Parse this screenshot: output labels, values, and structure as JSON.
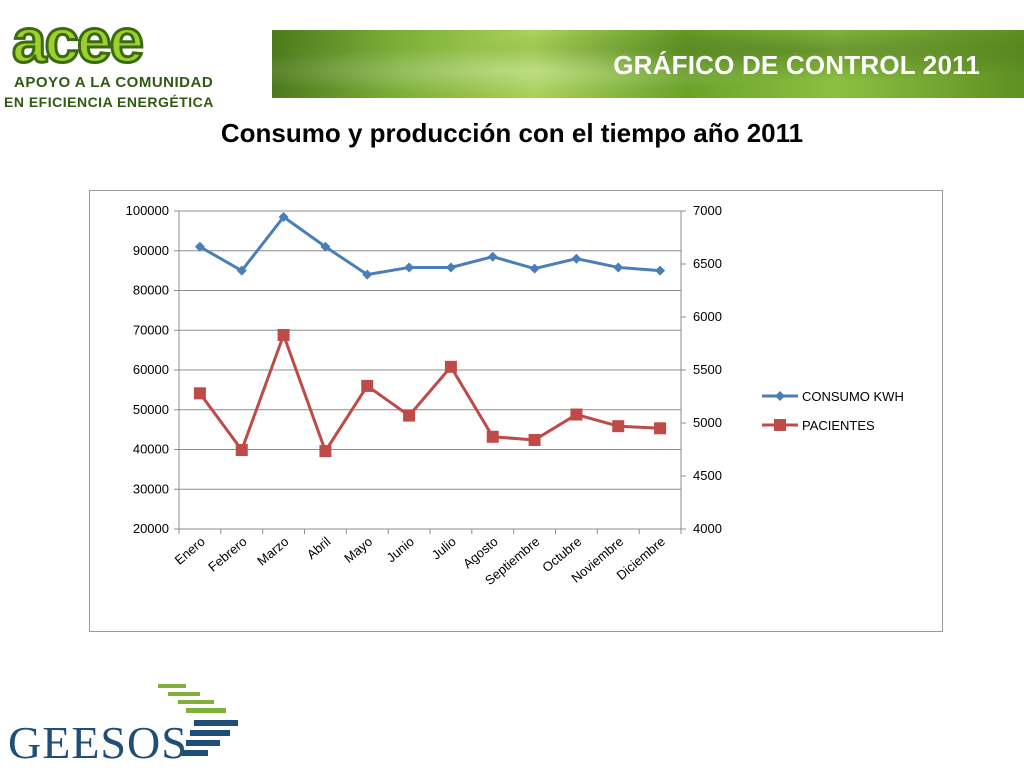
{
  "header": {
    "logo_text": "acee",
    "logo_line1": "APOYO A LA COMUNIDAD",
    "logo_line2": "EN EFICIENCIA ENERGÉTICA",
    "banner_title": "GRÁFICO DE CONTROL 2011"
  },
  "slide_title": "Consumo y producción con el tiempo año 2011",
  "footer": {
    "logo_text": "GEESOS"
  },
  "chart_data": {
    "type": "line",
    "title": "",
    "categories": [
      "Enero",
      "Febrero",
      "Marzo",
      "Abril",
      "Mayo",
      "Junio",
      "Julio",
      "Agosto",
      "Septiembre",
      "Octubre",
      "Noviembre",
      "Diciembre"
    ],
    "series": [
      {
        "name": "CONSUMO KWH",
        "axis": "left",
        "color": "#4a7eb8",
        "marker": "diamond",
        "values": [
          91000,
          85000,
          98500,
          91000,
          84000,
          85800,
          85800,
          88500,
          85500,
          88000,
          85800,
          85000
        ]
      },
      {
        "name": "PACIENTES",
        "axis": "right",
        "color": "#be4b48",
        "marker": "square",
        "values": [
          5280,
          4745,
          5830,
          4735,
          5350,
          5070,
          5530,
          4870,
          4840,
          5080,
          4970,
          4950
        ]
      }
    ],
    "y_left": {
      "min": 20000,
      "max": 100000,
      "ticks": [
        "100000",
        "90000",
        "80000",
        "70000",
        "60000",
        "50000",
        "40000",
        "30000",
        "20000"
      ]
    },
    "y_right": {
      "min": 4000,
      "max": 7000,
      "ticks": [
        "7000",
        "6500",
        "6000",
        "5500",
        "5000",
        "4500",
        "4000"
      ]
    },
    "grid": true,
    "legend_position": "right"
  }
}
